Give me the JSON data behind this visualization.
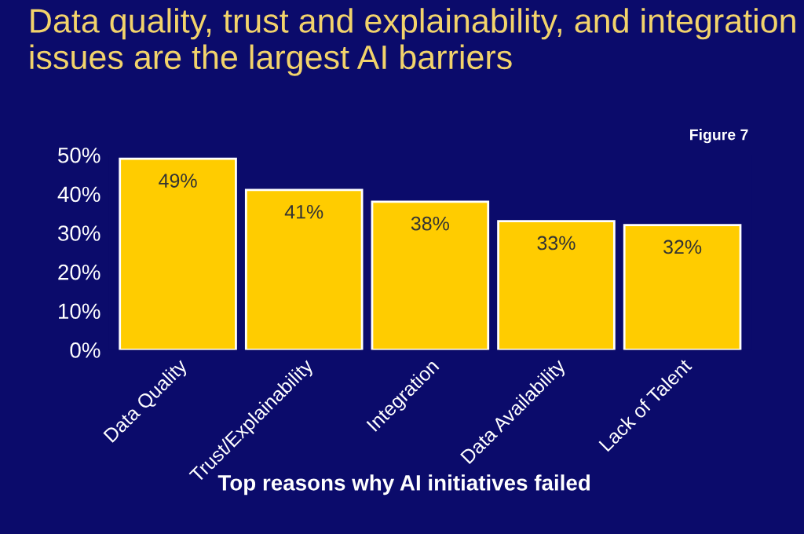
{
  "chart_data": {
    "type": "bar",
    "title": "Data quality, trust and explainability, and integration issues are the largest AI barriers",
    "xlabel": "Top reasons why AI initiatives failed",
    "annotations": [
      "Figure 7"
    ],
    "categories": [
      "Data Quality",
      "Trust/Explainability",
      "Integration",
      "Data Availability",
      "Lack of Talent"
    ],
    "values": [
      49,
      41,
      38,
      33,
      32
    ],
    "value_labels": [
      "49%",
      "41%",
      "38%",
      "33%",
      "32%"
    ],
    "color": "#ffcc00",
    "ylim": [
      0,
      50
    ],
    "yticks": [
      {
        "value": 0,
        "label": "0%"
      },
      {
        "value": 10,
        "label": "10%"
      },
      {
        "value": 20,
        "label": "20%"
      },
      {
        "value": 30,
        "label": "30%"
      },
      {
        "value": 40,
        "label": "40%"
      },
      {
        "value": 50,
        "label": "50%"
      }
    ],
    "grid": false,
    "legend": false
  }
}
